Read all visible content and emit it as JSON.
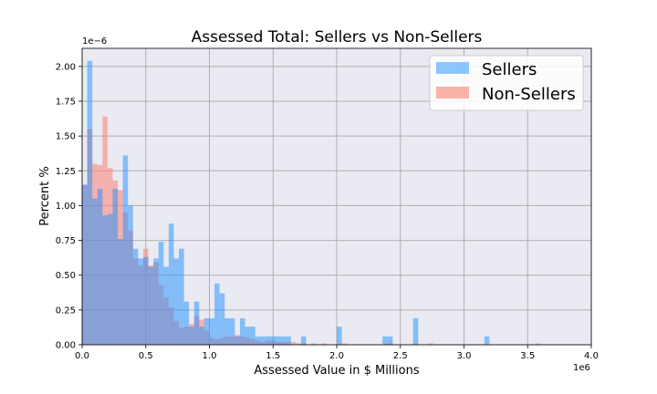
{
  "chart_data": {
    "type": "bar",
    "title": "Assessed Total: Sellers vs Non-Sellers",
    "xlabel": "Assessed Value in $ Millions",
    "ylabel": "Percent %",
    "x_offset_label": "1e6",
    "y_offset_label": "1e−6",
    "xlim": [
      0,
      4.0
    ],
    "ylim": [
      0,
      2.13
    ],
    "x_ticks": [
      0,
      0.5,
      1.0,
      1.5,
      2.0,
      2.5,
      3.0,
      3.5,
      4.0
    ],
    "x_tick_labels": [
      "0.0",
      "0.5",
      "1.0",
      "1.5",
      "2.0",
      "2.5",
      "3.0",
      "3.5",
      "4.0"
    ],
    "y_ticks": [
      0,
      0.25,
      0.5,
      0.75,
      1.0,
      1.25,
      1.5,
      1.75,
      2.0
    ],
    "y_tick_labels": [
      "0.00",
      "0.25",
      "0.50",
      "0.75",
      "1.00",
      "1.25",
      "1.50",
      "1.75",
      "2.00"
    ],
    "grid": true,
    "legend_position": "top-right",
    "colors": {
      "Sellers": "#1E90FF",
      "Non-Sellers": "#FA8072",
      "overlap": "#B88FA8",
      "plot_bg": "#EAEAF2",
      "grid": "#B0B0B0"
    },
    "bin_width": 0.04,
    "series": [
      {
        "name": "Sellers",
        "bins": [
          [
            0.0,
            1.15
          ],
          [
            0.04,
            2.04
          ],
          [
            0.08,
            1.05
          ],
          [
            0.12,
            1.12
          ],
          [
            0.16,
            0.93
          ],
          [
            0.2,
            0.94
          ],
          [
            0.24,
            1.12
          ],
          [
            0.28,
            0.76
          ],
          [
            0.32,
            1.36
          ],
          [
            0.36,
            1.0
          ],
          [
            0.4,
            0.69
          ],
          [
            0.44,
            0.62
          ],
          [
            0.48,
            0.63
          ],
          [
            0.52,
            0.56
          ],
          [
            0.56,
            0.62
          ],
          [
            0.6,
            0.74
          ],
          [
            0.64,
            0.56
          ],
          [
            0.68,
            0.87
          ],
          [
            0.72,
            0.62
          ],
          [
            0.76,
            0.69
          ],
          [
            0.8,
            0.31
          ],
          [
            0.84,
            0.13
          ],
          [
            0.88,
            0.31
          ],
          [
            0.92,
            0.13
          ],
          [
            0.96,
            0.19
          ],
          [
            1.0,
            0.19
          ],
          [
            1.04,
            0.44
          ],
          [
            1.08,
            0.37
          ],
          [
            1.12,
            0.19
          ],
          [
            1.16,
            0.19
          ],
          [
            1.2,
            0.06
          ],
          [
            1.24,
            0.19
          ],
          [
            1.28,
            0.13
          ],
          [
            1.32,
            0.13
          ],
          [
            1.36,
            0.06
          ],
          [
            1.4,
            0.06
          ],
          [
            1.44,
            0.06
          ],
          [
            1.48,
            0.06
          ],
          [
            1.52,
            0.06
          ],
          [
            1.56,
            0.06
          ],
          [
            1.6,
            0.06
          ],
          [
            1.72,
            0.06
          ],
          [
            2.0,
            0.13
          ],
          [
            2.36,
            0.06
          ],
          [
            2.4,
            0.06
          ],
          [
            2.6,
            0.19
          ],
          [
            3.16,
            0.06
          ]
        ]
      },
      {
        "name": "Non-Sellers",
        "bins": [
          [
            0.0,
            1.15
          ],
          [
            0.04,
            1.55
          ],
          [
            0.08,
            1.3
          ],
          [
            0.12,
            1.29
          ],
          [
            0.16,
            1.64
          ],
          [
            0.2,
            1.27
          ],
          [
            0.24,
            1.18
          ],
          [
            0.28,
            1.11
          ],
          [
            0.32,
            0.95
          ],
          [
            0.36,
            0.82
          ],
          [
            0.4,
            0.62
          ],
          [
            0.44,
            0.57
          ],
          [
            0.48,
            0.69
          ],
          [
            0.52,
            0.57
          ],
          [
            0.56,
            0.59
          ],
          [
            0.6,
            0.43
          ],
          [
            0.64,
            0.34
          ],
          [
            0.68,
            0.27
          ],
          [
            0.72,
            0.17
          ],
          [
            0.76,
            0.12
          ],
          [
            0.8,
            0.13
          ],
          [
            0.84,
            0.15
          ],
          [
            0.88,
            0.21
          ],
          [
            0.92,
            0.18
          ],
          [
            0.96,
            0.1
          ],
          [
            1.0,
            0.05
          ],
          [
            1.04,
            0.04
          ],
          [
            1.08,
            0.05
          ],
          [
            1.12,
            0.06
          ],
          [
            1.16,
            0.06
          ],
          [
            1.2,
            0.07
          ],
          [
            1.24,
            0.06
          ],
          [
            1.28,
            0.05
          ],
          [
            1.32,
            0.04
          ],
          [
            1.36,
            0.03
          ],
          [
            1.4,
            0.02
          ],
          [
            1.44,
            0.03
          ],
          [
            1.48,
            0.03
          ],
          [
            1.52,
            0.02
          ],
          [
            1.56,
            0.02
          ],
          [
            1.6,
            0.02
          ],
          [
            1.64,
            0.02
          ],
          [
            1.68,
            0.01
          ],
          [
            1.72,
            0.01
          ],
          [
            1.8,
            0.01
          ],
          [
            1.88,
            0.01
          ],
          [
            2.04,
            0.01
          ],
          [
            2.4,
            0.01
          ],
          [
            2.6,
            0.01
          ],
          [
            2.72,
            0.01
          ],
          [
            3.56,
            0.01
          ]
        ]
      }
    ]
  }
}
